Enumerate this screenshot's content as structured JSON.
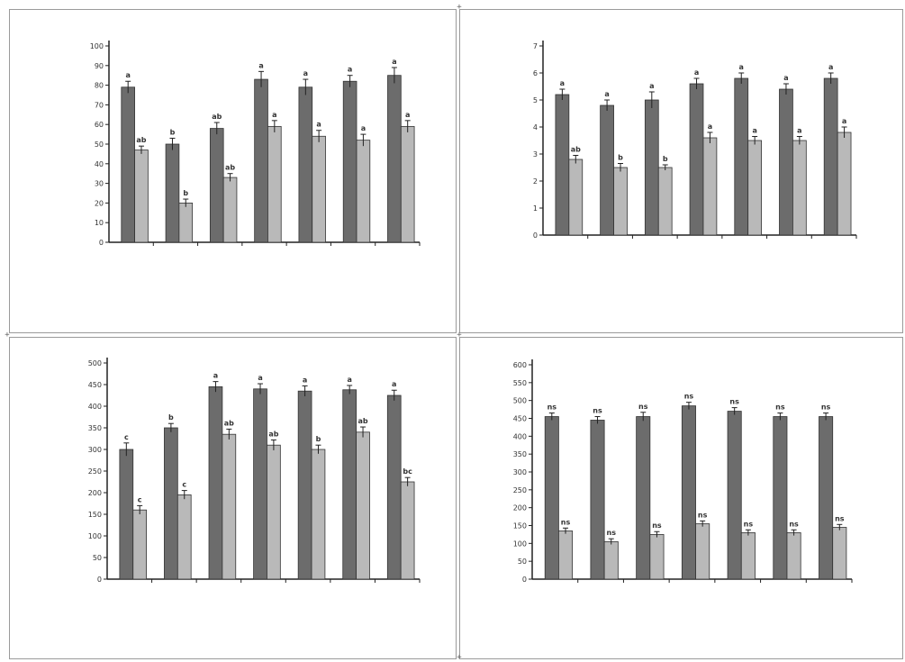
{
  "chart_data": [
    {
      "type": "bar",
      "title": "",
      "xlabel": "",
      "ylabel": "",
      "ylim": [
        0,
        100
      ],
      "yticks": [
        0,
        10,
        20,
        30,
        40,
        50,
        60,
        70,
        80,
        90,
        100
      ],
      "categories": [
        "",
        "",
        "",
        "",
        "",
        "",
        ""
      ],
      "series": [
        {
          "values": [
            79,
            50,
            58,
            83,
            79,
            82,
            85
          ],
          "errors": [
            3,
            3,
            3,
            4,
            4,
            3,
            4
          ],
          "labels": [
            "a",
            "b",
            "ab",
            "a",
            "a",
            "a",
            "a"
          ]
        },
        {
          "values": [
            47,
            20,
            33,
            59,
            54,
            52,
            59
          ],
          "errors": [
            2,
            2,
            2,
            3,
            3,
            3,
            3
          ],
          "labels": [
            "ab",
            "b",
            "ab",
            "a",
            "a",
            "a",
            "a"
          ]
        }
      ],
      "colors": [
        "#6c6c6c",
        "#b9b9b9"
      ],
      "grid": false,
      "legend": "none"
    },
    {
      "type": "bar",
      "title": "",
      "xlabel": "",
      "ylabel": "",
      "ylim": [
        0,
        7
      ],
      "yticks": [
        0,
        1,
        2,
        3,
        4,
        5,
        6,
        7
      ],
      "categories": [
        "",
        "",
        "",
        "",
        "",
        "",
        ""
      ],
      "series": [
        {
          "values": [
            5.2,
            4.8,
            5.0,
            5.6,
            5.8,
            5.4,
            5.8
          ],
          "errors": [
            0.2,
            0.2,
            0.3,
            0.2,
            0.2,
            0.2,
            0.2
          ],
          "labels": [
            "a",
            "a",
            "a",
            "a",
            "a",
            "a",
            "a"
          ]
        },
        {
          "values": [
            2.8,
            2.5,
            2.5,
            3.6,
            3.5,
            3.5,
            3.8
          ],
          "errors": [
            0.15,
            0.15,
            0.1,
            0.2,
            0.15,
            0.15,
            0.2
          ],
          "labels": [
            "ab",
            "b",
            "b",
            "a",
            "a",
            "a",
            "a"
          ]
        }
      ],
      "colors": [
        "#6c6c6c",
        "#b9b9b9"
      ],
      "grid": false,
      "legend": "none"
    },
    {
      "type": "bar",
      "title": "",
      "xlabel": "",
      "ylabel": "",
      "ylim": [
        0,
        500
      ],
      "yticks": [
        0,
        50,
        100,
        150,
        200,
        250,
        300,
        350,
        400,
        450,
        500
      ],
      "categories": [
        "",
        "",
        "",
        "",
        "",
        "",
        ""
      ],
      "series": [
        {
          "values": [
            300,
            350,
            445,
            440,
            435,
            438,
            425
          ],
          "errors": [
            15,
            10,
            12,
            12,
            12,
            10,
            12
          ],
          "labels": [
            "c",
            "b",
            "a",
            "a",
            "a",
            "a",
            "a"
          ]
        },
        {
          "values": [
            160,
            195,
            335,
            310,
            300,
            340,
            225
          ],
          "errors": [
            10,
            10,
            12,
            12,
            10,
            12,
            10
          ],
          "labels": [
            "c",
            "c",
            "ab",
            "ab",
            "b",
            "ab",
            "bc"
          ]
        }
      ],
      "colors": [
        "#6c6c6c",
        "#b9b9b9"
      ],
      "grid": false,
      "legend": "none"
    },
    {
      "type": "bar",
      "title": "",
      "xlabel": "",
      "ylabel": "",
      "ylim": [
        0,
        600
      ],
      "yticks": [
        0,
        50,
        100,
        150,
        200,
        250,
        300,
        350,
        400,
        450,
        500,
        550,
        600
      ],
      "categories": [
        "",
        "",
        "",
        "",
        "",
        "",
        ""
      ],
      "series": [
        {
          "values": [
            455,
            445,
            455,
            485,
            470,
            455,
            455
          ],
          "errors": [
            10,
            10,
            12,
            10,
            10,
            10,
            10
          ],
          "labels": [
            "ns",
            "ns",
            "ns",
            "ns",
            "ns",
            "ns",
            "ns"
          ]
        },
        {
          "values": [
            135,
            105,
            125,
            155,
            130,
            130,
            145
          ],
          "errors": [
            8,
            8,
            8,
            8,
            8,
            8,
            8
          ],
          "labels": [
            "ns",
            "ns",
            "ns",
            "ns",
            "ns",
            "ns",
            "ns"
          ]
        }
      ],
      "colors": [
        "#6c6c6c",
        "#b9b9b9"
      ],
      "grid": false,
      "legend": "none"
    }
  ]
}
